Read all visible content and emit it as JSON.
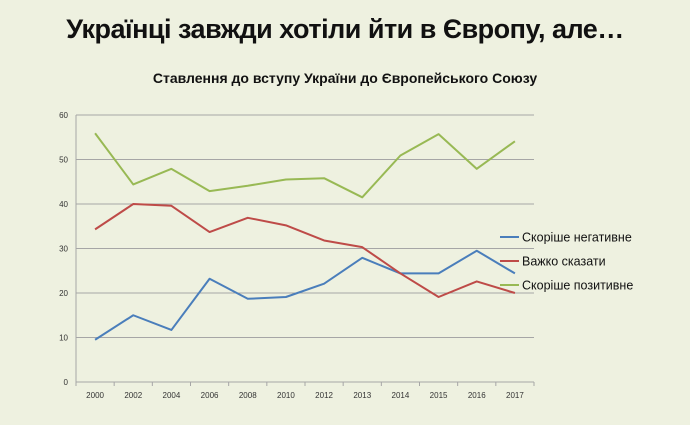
{
  "chart_data": {
    "type": "line",
    "title": "Українці завжди хотіли йти в Європу, але…",
    "subtitle": "Ставлення до вступу України до Європейського Союзу",
    "xlabel": "",
    "ylabel": "",
    "ylim": [
      0,
      60
    ],
    "yticks": [
      0,
      10,
      20,
      30,
      40,
      50,
      60
    ],
    "grid": true,
    "legend_position": "right",
    "categories": [
      "2000",
      "2002",
      "2004",
      "2006",
      "2008",
      "2010",
      "2012",
      "2013",
      "2014",
      "2015",
      "2016",
      "2017"
    ],
    "series": [
      {
        "name": "Скоріше негативне",
        "color": "#4a7ebb",
        "values": [
          9.5,
          15.0,
          11.7,
          23.2,
          18.7,
          19.1,
          22.1,
          27.9,
          24.4,
          24.4,
          29.5,
          24.4
        ]
      },
      {
        "name": "Важко сказати",
        "color": "#be4b48",
        "values": [
          34.3,
          40.0,
          39.6,
          33.7,
          36.9,
          35.2,
          31.8,
          30.3,
          24.4,
          19.1,
          22.6,
          20.0
        ]
      },
      {
        "name": "Скоріше позитивне",
        "color": "#98b954",
        "values": [
          55.9,
          44.4,
          47.9,
          42.9,
          44.1,
          45.5,
          45.8,
          41.5,
          50.9,
          55.7,
          47.9,
          54.1
        ]
      }
    ]
  }
}
